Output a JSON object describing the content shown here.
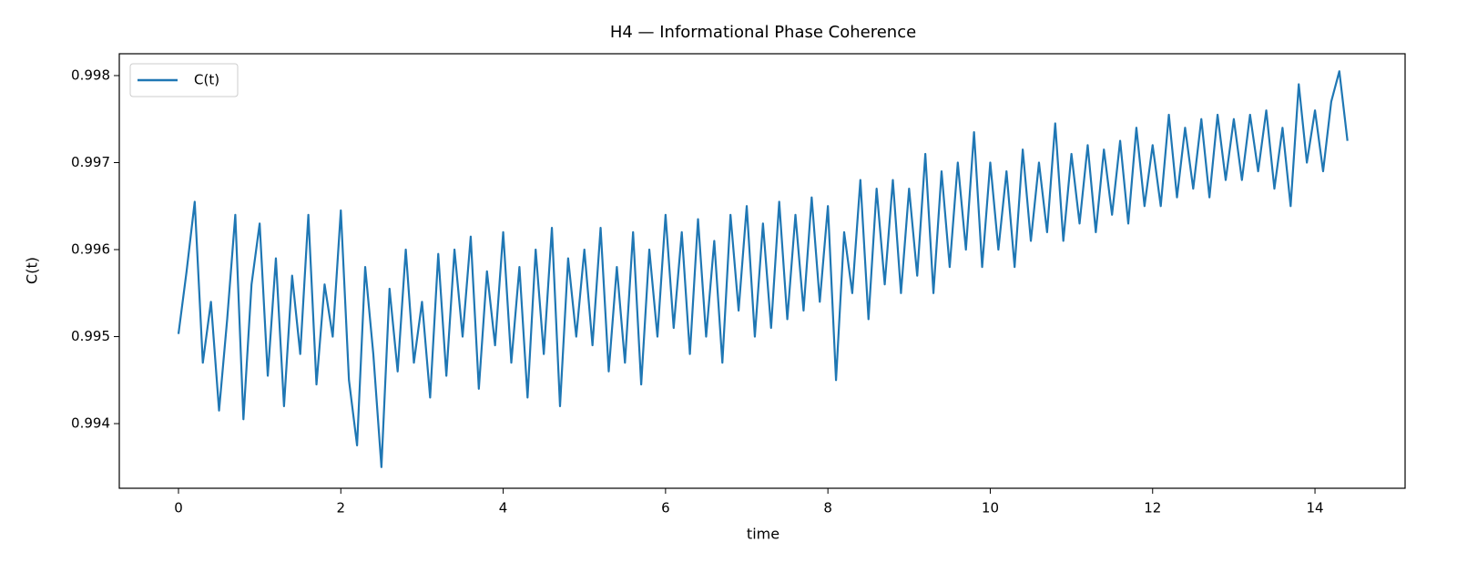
{
  "chart_data": {
    "type": "line",
    "title": "H4 — Informational Phase Coherence",
    "xlabel": "time",
    "ylabel": "C(t)",
    "xlim": [
      -0.729,
      15.11
    ],
    "ylim": [
      0.993257,
      0.998251
    ],
    "xticks": [
      0,
      2,
      4,
      6,
      8,
      10,
      12,
      14
    ],
    "yticks": [
      0.994,
      0.995,
      0.996,
      0.997,
      0.998
    ],
    "legend": "upper left",
    "x": [
      0,
      0.1,
      0.2,
      0.3,
      0.4,
      0.5,
      0.6,
      0.7,
      0.8,
      0.9,
      1,
      1.1,
      1.2,
      1.3,
      1.4,
      1.5,
      1.6,
      1.7,
      1.8,
      1.9,
      2,
      2.1,
      2.2,
      2.3,
      2.4,
      2.5,
      2.6,
      2.7,
      2.8,
      2.9,
      3,
      3.1,
      3.2,
      3.3,
      3.4,
      3.5,
      3.6,
      3.7,
      3.8,
      3.9,
      4,
      4.1,
      4.2,
      4.3,
      4.4,
      4.5,
      4.6,
      4.7,
      4.8,
      4.9,
      5,
      5.1,
      5.2,
      5.3,
      5.4,
      5.5,
      5.6,
      5.7,
      5.8,
      5.9,
      6,
      6.1,
      6.2,
      6.3,
      6.4,
      6.5,
      6.6,
      6.7,
      6.8,
      6.9,
      7,
      7.1,
      7.2,
      7.3,
      7.4,
      7.5,
      7.6,
      7.7,
      7.8,
      7.9,
      8,
      8.1,
      8.2,
      8.3,
      8.4,
      8.5,
      8.6,
      8.7,
      8.8,
      8.9,
      9,
      9.1,
      9.2,
      9.3,
      9.4,
      9.5,
      9.6,
      9.7,
      9.8,
      9.9,
      10,
      10.1,
      10.2,
      10.3,
      10.4,
      10.5,
      10.6,
      10.7,
      10.8,
      10.9,
      11,
      11.1,
      11.2,
      11.3,
      11.4,
      11.5,
      11.6,
      11.7,
      11.8,
      11.9,
      12,
      12.1,
      12.2,
      12.3,
      12.4,
      12.5,
      12.6,
      12.7,
      12.8,
      12.9,
      13,
      13.1,
      13.2,
      13.3,
      13.4,
      13.5,
      13.6,
      13.7,
      13.8,
      13.9,
      14,
      14.1,
      14.2,
      14.3,
      14.4
    ],
    "series": [
      {
        "name": "C(t)",
        "color": "#1f77b4",
        "values": [
          0.99503,
          0.99575,
          0.99655,
          0.9947,
          0.9954,
          0.99415,
          0.9952,
          0.9964,
          0.99405,
          0.9956,
          0.9963,
          0.99455,
          0.9959,
          0.9942,
          0.9957,
          0.9948,
          0.9964,
          0.99445,
          0.9956,
          0.995,
          0.99645,
          0.9945,
          0.99375,
          0.9958,
          0.9948,
          0.9935,
          0.99555,
          0.9946,
          0.996,
          0.9947,
          0.9954,
          0.9943,
          0.99595,
          0.99455,
          0.996,
          0.995,
          0.99615,
          0.9944,
          0.99575,
          0.9949,
          0.9962,
          0.9947,
          0.9958,
          0.9943,
          0.996,
          0.9948,
          0.99625,
          0.9942,
          0.9959,
          0.995,
          0.996,
          0.9949,
          0.99625,
          0.9946,
          0.9958,
          0.9947,
          0.9962,
          0.99445,
          0.996,
          0.995,
          0.9964,
          0.9951,
          0.9962,
          0.9948,
          0.99635,
          0.995,
          0.9961,
          0.9947,
          0.9964,
          0.9953,
          0.9965,
          0.995,
          0.9963,
          0.9951,
          0.99655,
          0.9952,
          0.9964,
          0.9953,
          0.9966,
          0.9954,
          0.9965,
          0.9945,
          0.9962,
          0.9955,
          0.9968,
          0.9952,
          0.9967,
          0.9956,
          0.9968,
          0.9955,
          0.9967,
          0.9957,
          0.9971,
          0.9955,
          0.9969,
          0.9958,
          0.997,
          0.996,
          0.99735,
          0.9958,
          0.997,
          0.996,
          0.9969,
          0.9958,
          0.99715,
          0.9961,
          0.997,
          0.9962,
          0.99745,
          0.9961,
          0.9971,
          0.9963,
          0.9972,
          0.9962,
          0.99715,
          0.9964,
          0.99725,
          0.9963,
          0.9974,
          0.9965,
          0.9972,
          0.9965,
          0.99755,
          0.9966,
          0.9974,
          0.9967,
          0.9975,
          0.9966,
          0.99755,
          0.9968,
          0.9975,
          0.9968,
          0.99755,
          0.9969,
          0.9976,
          0.9967,
          0.9974,
          0.9965,
          0.9979,
          0.997,
          0.9976,
          0.9969,
          0.9977,
          0.99805,
          0.99725
        ]
      }
    ]
  }
}
